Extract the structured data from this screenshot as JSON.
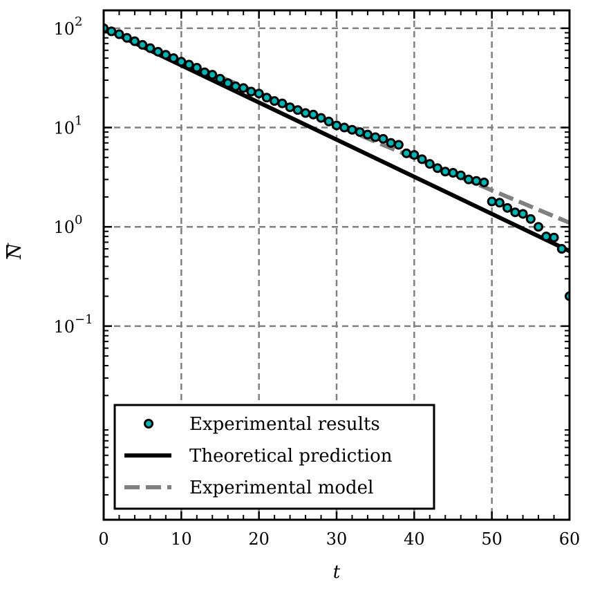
{
  "chart_data": {
    "type": "scatter",
    "xlabel": "t",
    "ylabel": "N",
    "ylabel_overline": true,
    "xlim": [
      0,
      60
    ],
    "ylim_log10": [
      -2.95,
      2.18
    ],
    "yscale": "log",
    "grid": true,
    "legend_position": "bottom-left",
    "x_ticks": [
      0,
      10,
      20,
      30,
      40,
      50,
      60
    ],
    "x_tick_labels": [
      "0",
      "10",
      "20",
      "30",
      "40",
      "50",
      "60"
    ],
    "y_ticks_exp": [
      2,
      1,
      0,
      -1
    ],
    "y_tick_base": "10",
    "y_tick_exp_labels": [
      "2",
      "1",
      "0",
      "−1"
    ],
    "series": [
      {
        "name": "Experimental results",
        "kind": "scatter",
        "color": "#00b3b3",
        "edge_color": "#000000",
        "x": [
          0,
          1,
          2,
          3,
          4,
          5,
          6,
          7,
          8,
          9,
          10,
          11,
          12,
          13,
          14,
          15,
          16,
          17,
          18,
          19,
          20,
          21,
          22,
          23,
          24,
          25,
          26,
          27,
          28,
          29,
          30,
          31,
          32,
          33,
          34,
          35,
          36,
          37,
          38,
          39,
          40,
          41,
          42,
          43,
          44,
          45,
          46,
          47,
          48,
          49,
          50,
          51,
          52,
          53,
          54,
          55,
          56,
          57,
          58,
          59,
          60
        ],
        "y": [
          100,
          93,
          87,
          80,
          74,
          68,
          63,
          58,
          54,
          50,
          46,
          43,
          40,
          36,
          34,
          31,
          28,
          26,
          25,
          23,
          22,
          20,
          18.5,
          17.5,
          16,
          15,
          14,
          13.5,
          12.5,
          11.5,
          10.5,
          10,
          9.5,
          9,
          8.5,
          8,
          7.7,
          7,
          6.7,
          5.5,
          5.3,
          4.8,
          4.3,
          3.9,
          3.6,
          3.5,
          3.3,
          3.0,
          2.9,
          2.8,
          1.8,
          1.75,
          1.55,
          1.4,
          1.35,
          1.2,
          1.0,
          0.8,
          0.78,
          0.6,
          0.2
        ]
      },
      {
        "name": "Theoretical prediction",
        "kind": "line",
        "color": "#000000",
        "style": "solid",
        "x": [
          0,
          60
        ],
        "y": [
          100,
          0.57
        ]
      },
      {
        "name": "Experimental model",
        "kind": "line",
        "color": "#808080",
        "style": "dashed",
        "x": [
          0,
          60
        ],
        "y": [
          100,
          1.1
        ]
      }
    ]
  }
}
